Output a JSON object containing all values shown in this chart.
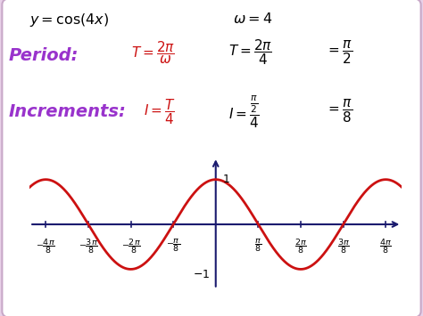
{
  "bg_color": "#e8d0e8",
  "panel_color": "#ffffff",
  "curve_color": "#cc1111",
  "axis_color": "#1a1a6e",
  "tick_color": "#1a1a6e",
  "label_color": "#000000",
  "purple_color": "#9933cc",
  "red_formula_color": "#cc1111",
  "xlim": [
    -1.72,
    1.72
  ],
  "ylim": [
    -1.55,
    1.55
  ],
  "x_ticks": [
    -1.5707963267948966,
    -1.1780972450961724,
    -0.7853981633974483,
    -0.39269908169872414,
    0.39269908169872414,
    0.7853981633974483,
    1.1780972450961724,
    1.5707963267948966
  ],
  "y_label_1_x": 0.05,
  "y_label_neg1_x": -0.12
}
